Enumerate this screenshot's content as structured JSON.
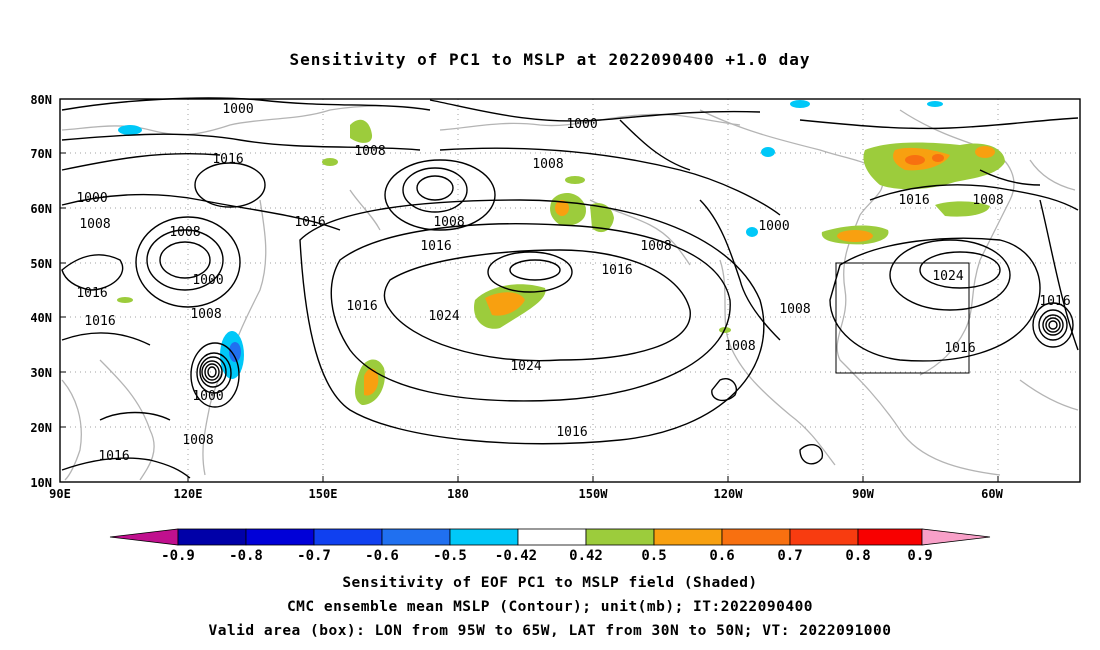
{
  "title": "Sensitivity of PC1 to MSLP at 2022090400 +1.0 day",
  "lat_labels": [
    "80N",
    "70N",
    "60N",
    "50N",
    "40N",
    "30N",
    "20N",
    "10N"
  ],
  "lon_labels": [
    "90E",
    "120E",
    "150E",
    "180",
    "150W",
    "120W",
    "90W",
    "60W"
  ],
  "contour_labels": [
    {
      "text": "1000",
      "id": "c1"
    },
    {
      "text": "1000",
      "id": "c2"
    },
    {
      "text": "1016",
      "id": "c3"
    },
    {
      "text": "1008",
      "id": "c4"
    },
    {
      "text": "1008",
      "id": "c5"
    },
    {
      "text": "1000",
      "id": "c6"
    },
    {
      "text": "1008",
      "id": "c7"
    },
    {
      "text": "1016",
      "id": "c8"
    },
    {
      "text": "1008",
      "id": "c9"
    },
    {
      "text": "1008",
      "id": "c10"
    },
    {
      "text": "1016",
      "id": "c11"
    },
    {
      "text": "1000",
      "id": "c12"
    },
    {
      "text": "1008",
      "id": "c13"
    },
    {
      "text": "1016",
      "id": "c14"
    },
    {
      "text": "1016",
      "id": "c15"
    },
    {
      "text": "1000",
      "id": "c16"
    },
    {
      "text": "1008",
      "id": "c17"
    },
    {
      "text": "1016",
      "id": "c18"
    },
    {
      "text": "1008",
      "id": "c19"
    },
    {
      "text": "1016",
      "id": "c20"
    },
    {
      "text": "1016",
      "id": "c21"
    },
    {
      "text": "1024",
      "id": "c22"
    },
    {
      "text": "1024",
      "id": "c23"
    },
    {
      "text": "1008",
      "id": "c24"
    },
    {
      "text": "1016",
      "id": "c25"
    },
    {
      "text": "1008",
      "id": "c26"
    },
    {
      "text": "1000",
      "id": "c27"
    },
    {
      "text": "1016",
      "id": "c28"
    },
    {
      "text": "1008",
      "id": "c29"
    },
    {
      "text": "1024",
      "id": "c30"
    },
    {
      "text": "1016",
      "id": "c31"
    },
    {
      "text": "1016",
      "id": "c32"
    }
  ],
  "colorbar": {
    "labels": [
      "-0.9",
      "-0.8",
      "-0.7",
      "-0.6",
      "-0.5",
      "-0.42",
      "0.42",
      "0.5",
      "0.6",
      "0.7",
      "0.8",
      "0.9"
    ],
    "colors": {
      "left_tri": "#c0108e",
      "levels": [
        "#0000a8",
        "#0000d8",
        "#1040f0",
        "#2070f0",
        "#10a0f0",
        "#00c8f8",
        "#ffffff",
        "#9ccc3c",
        "#f8a010",
        "#f87010",
        "#f83c10",
        "#f80000"
      ],
      "right_tri": "#f8a0c8"
    }
  },
  "validity_box": {
    "lon": "95W to 65W",
    "lat": "30N to 50N"
  },
  "captions": {
    "line1": "Sensitivity of EOF PC1 to MSLP field (Shaded)",
    "line2": "CMC ensemble mean MSLP (Contour); unit(mb); IT:2022090400",
    "line3": "Valid area (box): LON from 95W to 65W, LAT from 30N to 50N; VT: 2022091000"
  }
}
